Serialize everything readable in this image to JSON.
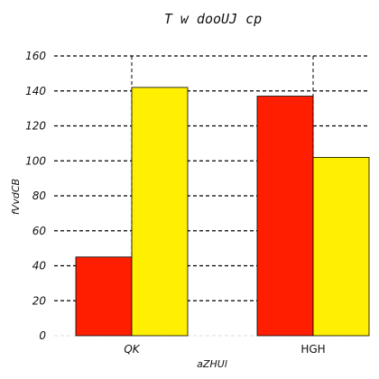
{
  "chart_data": {
    "type": "bar",
    "title": "T  w dooUJ cp",
    "xlabel": "aZHUl",
    "ylabel": "fVvdCB",
    "categories": [
      "QK",
      "HGH"
    ],
    "category_italic": [
      true,
      false
    ],
    "ylim": [
      0,
      160
    ],
    "yticks": [
      0,
      20,
      40,
      60,
      80,
      100,
      120,
      140,
      160
    ],
    "grid": {
      "y": true,
      "y_style": "dashed",
      "x": true,
      "x_style": "dashed"
    },
    "series": [
      {
        "values": [
          45,
          137
        ],
        "color": "#ff1e00"
      },
      {
        "values": [
          142,
          102
        ],
        "color": "#ffef00"
      }
    ]
  }
}
